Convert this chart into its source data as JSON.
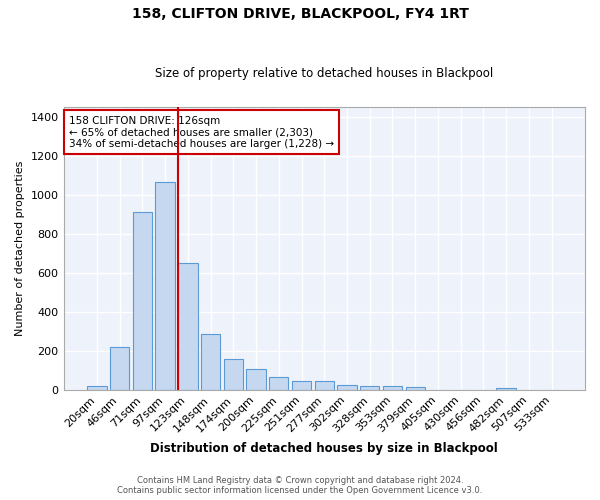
{
  "title": "158, CLIFTON DRIVE, BLACKPOOL, FY4 1RT",
  "subtitle": "Size of property relative to detached houses in Blackpool",
  "xlabel": "Distribution of detached houses by size in Blackpool",
  "ylabel": "Number of detached properties",
  "bar_labels": [
    "20sqm",
    "46sqm",
    "71sqm",
    "97sqm",
    "123sqm",
    "148sqm",
    "174sqm",
    "200sqm",
    "225sqm",
    "251sqm",
    "277sqm",
    "302sqm",
    "328sqm",
    "353sqm",
    "379sqm",
    "405sqm",
    "430sqm",
    "456sqm",
    "482sqm",
    "507sqm",
    "533sqm"
  ],
  "bar_values": [
    18,
    222,
    912,
    1065,
    648,
    285,
    158,
    105,
    65,
    45,
    45,
    27,
    20,
    20,
    13,
    0,
    0,
    0,
    10,
    0,
    0
  ],
  "bar_color": "#c5d8f0",
  "bar_edge_color": "#5b9bd5",
  "background_color": "#eef2fb",
  "grid_color": "#ffffff",
  "vline_color": "#cc0000",
  "annotation_title": "158 CLIFTON DRIVE: 126sqm",
  "annotation_line1": "← 65% of detached houses are smaller (2,303)",
  "annotation_line2": "34% of semi-detached houses are larger (1,228) →",
  "annotation_box_color": "#ffffff",
  "annotation_box_edge": "#cc0000",
  "footer1": "Contains HM Land Registry data © Crown copyright and database right 2024.",
  "footer2": "Contains public sector information licensed under the Open Government Licence v3.0.",
  "ylim": [
    0,
    1450
  ],
  "yticks": [
    0,
    200,
    400,
    600,
    800,
    1000,
    1200,
    1400
  ]
}
